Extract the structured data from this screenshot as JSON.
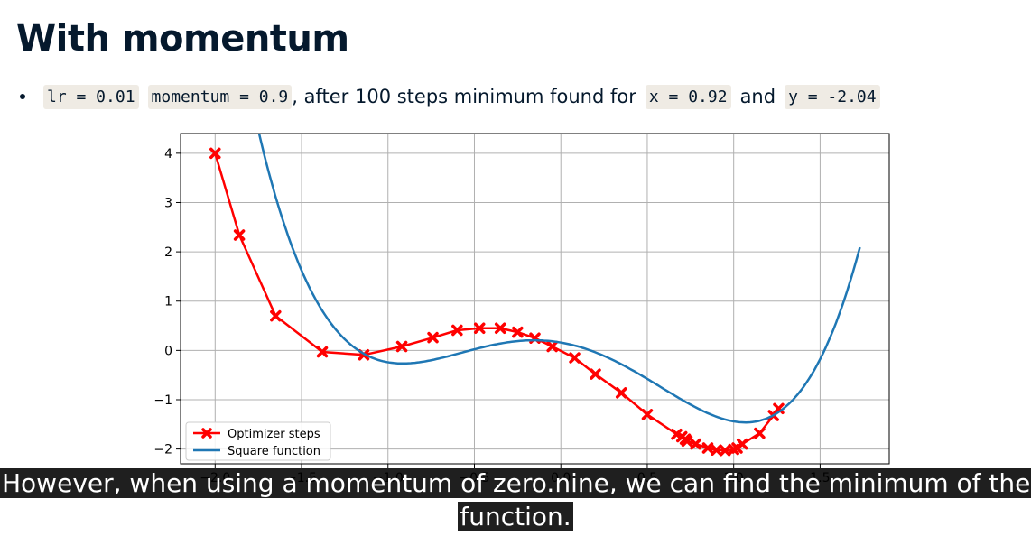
{
  "slide": {
    "title": "With momentum",
    "bullet": {
      "code_lr": "lr = 0.01",
      "code_momentum": "momentum = 0.9",
      "text_after": ", after 100 steps minimum found for",
      "code_x": "x = 0.92",
      "text_and": "and",
      "code_y": "y = -2.04"
    }
  },
  "caption": "However, when using a momentum of zero.nine, we can find the minimum of the function.",
  "colors": {
    "function_line": "#1f77b4",
    "optimizer_steps": "#ff0000",
    "grid": "#b0b0b0",
    "code_bg": "#efebe4",
    "text": "#05192d"
  },
  "chart_data": {
    "type": "line",
    "title": "",
    "xlabel": "",
    "ylabel": "",
    "xlim": [
      -2.2,
      1.9
    ],
    "ylim": [
      -2.3,
      4.4
    ],
    "xticks": [
      -2.0,
      -1.5,
      -1.0,
      -0.5,
      0.0,
      0.5,
      1.0,
      1.5
    ],
    "xtick_labels": [
      "−2.0",
      "−1.5",
      "−1.0",
      "−0.5",
      "0.0",
      "0.5",
      "1.0",
      "1.5"
    ],
    "yticks": [
      -2,
      -1,
      0,
      1,
      2,
      3,
      4
    ],
    "ytick_labels": [
      "−2",
      "−1",
      "0",
      "1",
      "2",
      "3",
      "4"
    ],
    "grid": true,
    "legend_position": "lower-left",
    "series": [
      {
        "name": "Optimizer steps",
        "style": "red line with x markers",
        "x": [
          -2.0,
          -1.86,
          -1.65,
          -1.38,
          -1.14,
          -0.92,
          -0.74,
          -0.6,
          -0.47,
          -0.35,
          -0.25,
          -0.15,
          -0.05,
          0.08,
          0.2,
          0.35,
          0.5,
          0.67,
          0.7,
          0.72,
          0.73,
          0.78,
          0.85,
          0.9,
          0.95,
          1.0,
          1.02,
          1.05,
          1.15,
          1.23,
          1.26
        ],
        "y": [
          4.0,
          2.34,
          0.7,
          -0.03,
          -0.09,
          0.08,
          0.26,
          0.41,
          0.45,
          0.45,
          0.37,
          0.25,
          0.08,
          -0.15,
          -0.48,
          -0.86,
          -1.3,
          -1.7,
          -1.75,
          -1.8,
          -1.84,
          -1.9,
          -1.98,
          -2.02,
          -2.03,
          -2.01,
          -1.98,
          -1.9,
          -1.68,
          -1.32,
          -1.18
        ]
      },
      {
        "name": "Square function",
        "style": "blue smooth curve",
        "formula": "y = x^4 - 2x^2 - 0.6x + 0.16",
        "x_range": [
          -2.0,
          1.73
        ]
      }
    ]
  }
}
